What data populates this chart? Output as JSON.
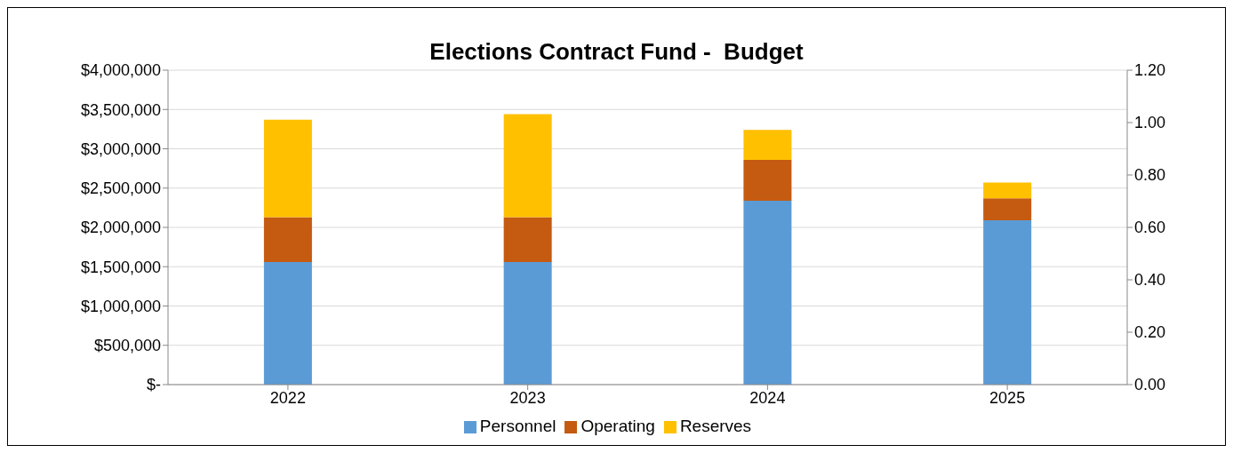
{
  "chart_data": {
    "type": "bar",
    "title": "Elections Contract Fund -  Budget",
    "categories": [
      "2022",
      "2023",
      "2024",
      "2025"
    ],
    "stacked": true,
    "series": [
      {
        "name": "Personnel",
        "color": "#5b9bd5",
        "values": [
          1560000,
          1560000,
          2340000,
          2090000
        ]
      },
      {
        "name": "Operating",
        "color": "#c55a11",
        "values": [
          570000,
          570000,
          520000,
          280000
        ]
      },
      {
        "name": "Reserves",
        "color": "#ffc000",
        "values": [
          1240000,
          1310000,
          380000,
          200000
        ]
      }
    ],
    "ylim": [
      0,
      4000000
    ],
    "yticks": [
      {
        "value": 0,
        "label": "$-"
      },
      {
        "value": 500000,
        "label": "$500,000"
      },
      {
        "value": 1000000,
        "label": "$1,000,000"
      },
      {
        "value": 1500000,
        "label": "$1,500,000"
      },
      {
        "value": 2000000,
        "label": "$2,000,000"
      },
      {
        "value": 2500000,
        "label": "$2,500,000"
      },
      {
        "value": 3000000,
        "label": "$3,000,000"
      },
      {
        "value": 3500000,
        "label": "$3,500,000"
      },
      {
        "value": 4000000,
        "label": "$4,000,000"
      }
    ],
    "y2lim": [
      0,
      1.2
    ],
    "y2ticks": [
      {
        "value": 0,
        "label": "0.00"
      },
      {
        "value": 0.2,
        "label": "0.20"
      },
      {
        "value": 0.4,
        "label": "0.40"
      },
      {
        "value": 0.6,
        "label": "0.60"
      },
      {
        "value": 0.8,
        "label": "0.80"
      },
      {
        "value": 1,
        "label": "1.00"
      },
      {
        "value": 1.2,
        "label": "1.20"
      }
    ],
    "grid": "y",
    "legend": "bottom"
  }
}
